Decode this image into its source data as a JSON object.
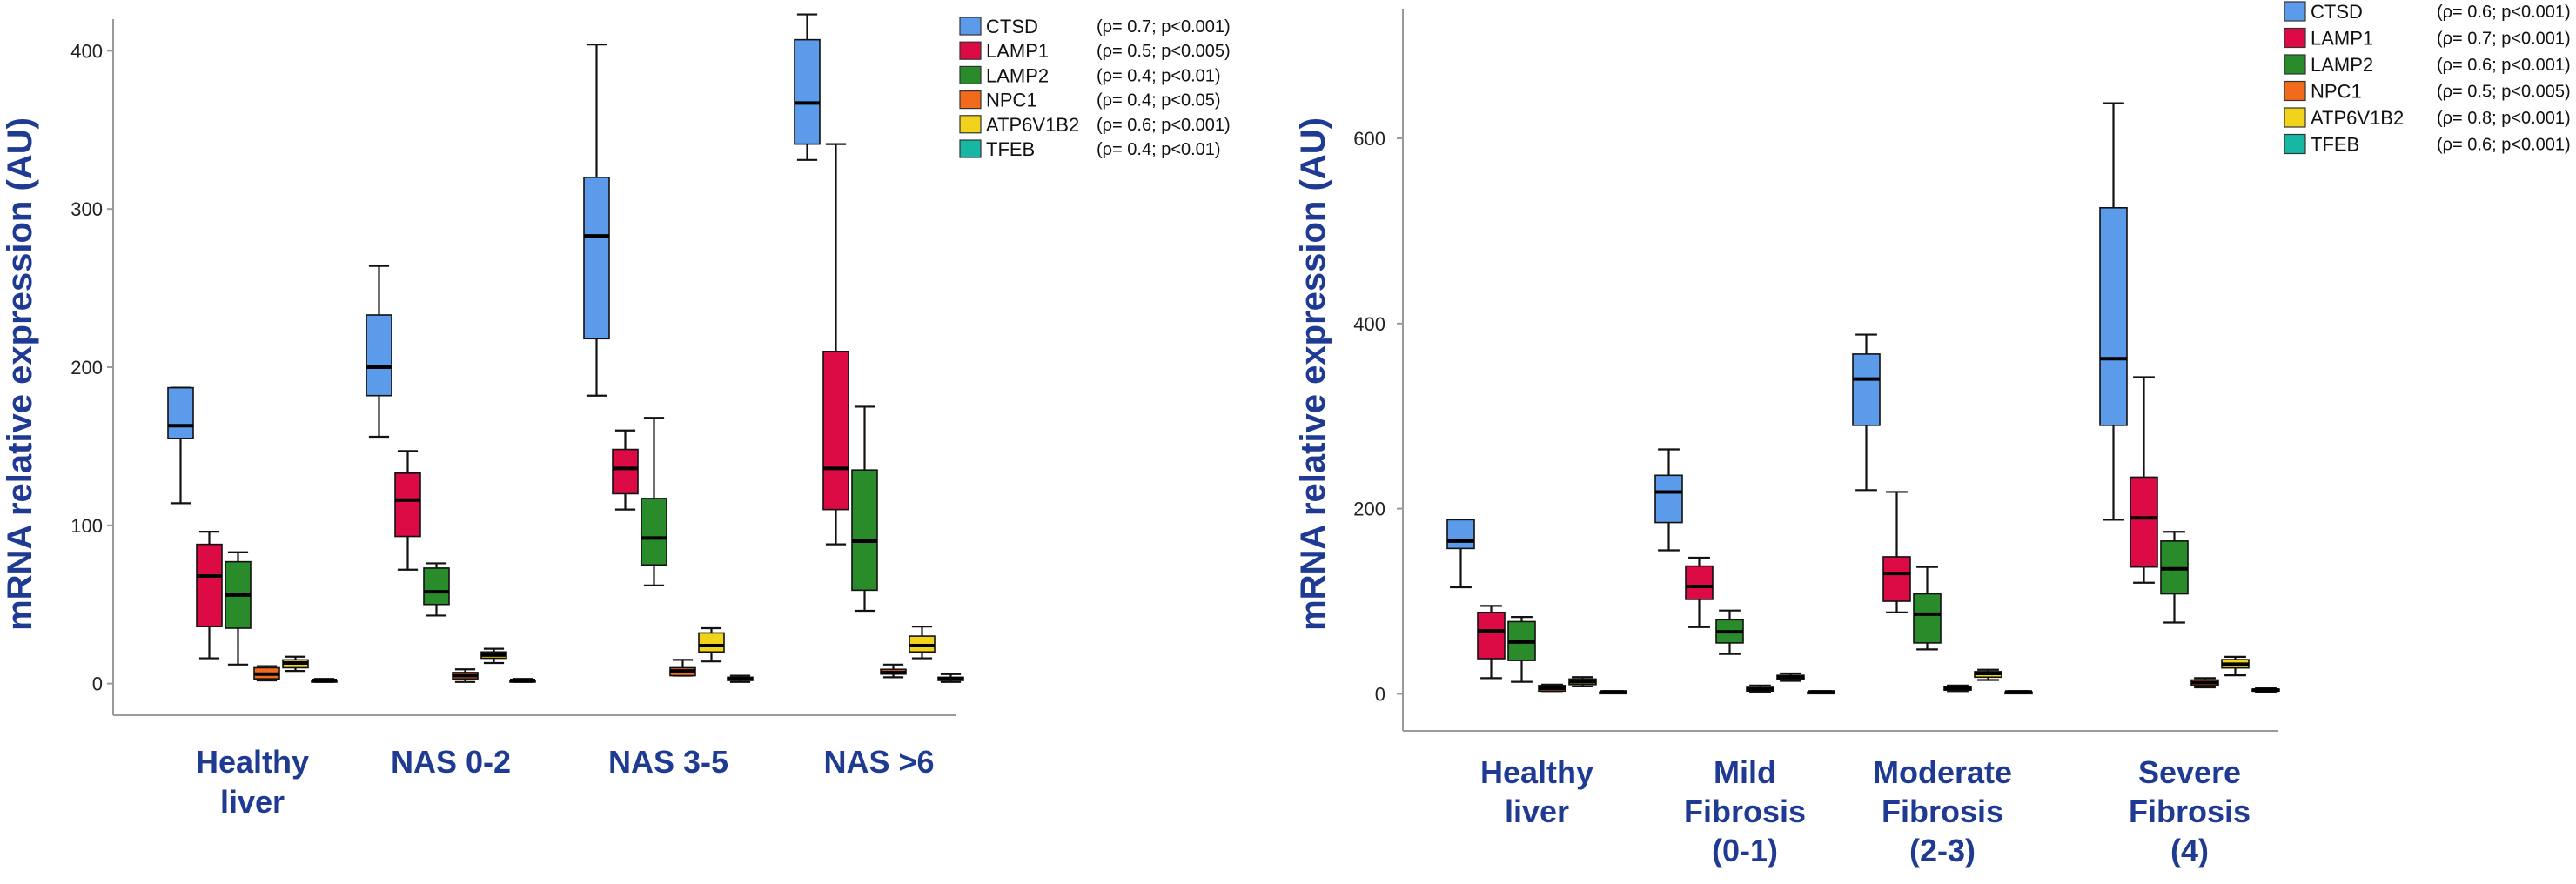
{
  "series_colors": {
    "CTSD": "#5b9bea",
    "LAMP1": "#dc0a45",
    "LAMP2": "#2a8b2a",
    "NPC1": "#f26b1d",
    "ATP6V1B2": "#f0d31a",
    "TFEB": "#17b7a6"
  },
  "chart_data": [
    {
      "type": "boxplot",
      "ylabel": "mRNA relative expression (AU)",
      "ylim": [
        -20,
        420
      ],
      "yticks": [
        0,
        100,
        200,
        300,
        400
      ],
      "categories": [
        {
          "label_lines": [
            "Healthy",
            "liver"
          ]
        },
        {
          "label_lines": [
            "NAS 0-2"
          ]
        },
        {
          "label_lines": [
            "NAS 3-5"
          ]
        },
        {
          "label_lines": [
            "NAS >6"
          ]
        }
      ],
      "legend": [
        {
          "name": "CTSD",
          "stat": "(ρ= 0.7; p<0.001)"
        },
        {
          "name": "LAMP1",
          "stat": "(ρ= 0.5; p<0.005)"
        },
        {
          "name": "LAMP2",
          "stat": "(ρ= 0.4; p<0.01)"
        },
        {
          "name": "NPC1",
          "stat": "(ρ= 0.4; p<0.05)"
        },
        {
          "name": "ATP6V1B2",
          "stat": "(ρ= 0.6; p<0.001)"
        },
        {
          "name": "TFEB",
          "stat": "(ρ= 0.4; p<0.01)"
        }
      ],
      "series": [
        {
          "name": "CTSD",
          "boxes": [
            {
              "min": 114,
              "q1": 155,
              "median": 163,
              "q3": 187,
              "max": 187
            },
            {
              "min": 156,
              "q1": 182,
              "median": 200,
              "q3": 233,
              "max": 264
            },
            {
              "min": 182,
              "q1": 218,
              "median": 283,
              "q3": 320,
              "max": 404
            },
            {
              "min": 331,
              "q1": 341,
              "median": 367,
              "q3": 407,
              "max": 423
            }
          ]
        },
        {
          "name": "LAMP1",
          "boxes": [
            {
              "min": 16,
              "q1": 36,
              "median": 68,
              "q3": 88,
              "max": 96
            },
            {
              "min": 72,
              "q1": 93,
              "median": 116,
              "q3": 133,
              "max": 147
            },
            {
              "min": 110,
              "q1": 120,
              "median": 136,
              "q3": 148,
              "max": 160
            },
            {
              "min": 88,
              "q1": 110,
              "median": 136,
              "q3": 210,
              "max": 341
            }
          ]
        },
        {
          "name": "LAMP2",
          "boxes": [
            {
              "min": 12,
              "q1": 35,
              "median": 56,
              "q3": 77,
              "max": 83
            },
            {
              "min": 43,
              "q1": 50,
              "median": 58,
              "q3": 73,
              "max": 76
            },
            {
              "min": 62,
              "q1": 75,
              "median": 92,
              "q3": 117,
              "max": 168
            },
            {
              "min": 46,
              "q1": 59,
              "median": 90,
              "q3": 135,
              "max": 175
            }
          ]
        },
        {
          "name": "NPC1",
          "boxes": [
            {
              "min": 2,
              "q1": 3,
              "median": 6,
              "q3": 10,
              "max": 11
            },
            {
              "min": 1,
              "q1": 3,
              "median": 5,
              "q3": 7,
              "max": 9
            },
            {
              "min": 5,
              "q1": 5,
              "median": 8,
              "q3": 10,
              "max": 15
            },
            {
              "min": 4,
              "q1": 6,
              "median": 7,
              "q3": 9,
              "max": 12
            }
          ]
        },
        {
          "name": "ATP6V1B2",
          "boxes": [
            {
              "min": 8,
              "q1": 10,
              "median": 13,
              "q3": 15,
              "max": 17
            },
            {
              "min": 13,
              "q1": 16,
              "median": 18,
              "q3": 20,
              "max": 22
            },
            {
              "min": 14,
              "q1": 20,
              "median": 24,
              "q3": 32,
              "max": 35
            },
            {
              "min": 16,
              "q1": 20,
              "median": 24,
              "q3": 30,
              "max": 36
            }
          ]
        },
        {
          "name": "TFEB",
          "boxes": [
            {
              "min": 1,
              "q1": 1,
              "median": 2,
              "q3": 2,
              "max": 3
            },
            {
              "min": 1,
              "q1": 1,
              "median": 2,
              "q3": 2,
              "max": 3
            },
            {
              "min": 1,
              "q1": 2,
              "median": 3,
              "q3": 4,
              "max": 5
            },
            {
              "min": 1,
              "q1": 2,
              "median": 3,
              "q3": 4,
              "max": 6
            }
          ]
        }
      ]
    },
    {
      "type": "boxplot",
      "ylabel": "mRNA relative expression (AU)",
      "ylim": [
        -40,
        740
      ],
      "yticks": [
        0,
        200,
        400,
        600
      ],
      "categories": [
        {
          "label_lines": [
            "Healthy",
            "liver"
          ]
        },
        {
          "label_lines": [
            "Mild",
            "Fibrosis",
            "(0-1)"
          ]
        },
        {
          "label_lines": [
            "Moderate",
            "Fibrosis",
            "(2-3)"
          ]
        },
        {
          "label_lines": [
            "Severe",
            "Fibrosis",
            "(4)"
          ]
        }
      ],
      "legend": [
        {
          "name": "CTSD",
          "stat": "(ρ= 0.6; p<0.001)"
        },
        {
          "name": "LAMP1",
          "stat": "(ρ= 0.7; p<0.001)"
        },
        {
          "name": "LAMP2",
          "stat": "(ρ= 0.6; p<0.001)"
        },
        {
          "name": "NPC1",
          "stat": "(ρ= 0.5; p<0.005)"
        },
        {
          "name": "ATP6V1B2",
          "stat": "(ρ= 0.8; p<0.001)"
        },
        {
          "name": "TFEB",
          "stat": "(ρ= 0.6; p<0.001)"
        }
      ],
      "series": [
        {
          "name": "CTSD",
          "boxes": [
            {
              "min": 115,
              "q1": 157,
              "median": 165,
              "q3": 188,
              "max": 188
            },
            {
              "min": 155,
              "q1": 185,
              "median": 218,
              "q3": 236,
              "max": 264
            },
            {
              "min": 220,
              "q1": 290,
              "median": 340,
              "q3": 367,
              "max": 388
            },
            {
              "min": 188,
              "q1": 290,
              "median": 362,
              "q3": 525,
              "max": 638
            }
          ]
        },
        {
          "name": "LAMP1",
          "boxes": [
            {
              "min": 17,
              "q1": 38,
              "median": 68,
              "q3": 88,
              "max": 95
            },
            {
              "min": 72,
              "q1": 102,
              "median": 116,
              "q3": 138,
              "max": 147
            },
            {
              "min": 88,
              "q1": 100,
              "median": 130,
              "q3": 148,
              "max": 218
            },
            {
              "min": 120,
              "q1": 137,
              "median": 190,
              "q3": 234,
              "max": 342
            }
          ]
        },
        {
          "name": "LAMP2",
          "boxes": [
            {
              "min": 13,
              "q1": 36,
              "median": 56,
              "q3": 78,
              "max": 83
            },
            {
              "min": 43,
              "q1": 55,
              "median": 67,
              "q3": 80,
              "max": 90
            },
            {
              "min": 48,
              "q1": 55,
              "median": 86,
              "q3": 108,
              "max": 137
            },
            {
              "min": 77,
              "q1": 108,
              "median": 135,
              "q3": 165,
              "max": 175
            }
          ]
        },
        {
          "name": "NPC1",
          "boxes": [
            {
              "min": 3,
              "q1": 3,
              "median": 6,
              "q3": 9,
              "max": 10
            },
            {
              "min": 2,
              "q1": 3,
              "median": 5,
              "q3": 7,
              "max": 9
            },
            {
              "min": 3,
              "q1": 4,
              "median": 6,
              "q3": 8,
              "max": 9
            },
            {
              "min": 7,
              "q1": 9,
              "median": 12,
              "q3": 15,
              "max": 17
            }
          ]
        },
        {
          "name": "ATP6V1B2",
          "boxes": [
            {
              "min": 8,
              "q1": 10,
              "median": 13,
              "q3": 16,
              "max": 18
            },
            {
              "min": 14,
              "q1": 16,
              "median": 18,
              "q3": 20,
              "max": 22
            },
            {
              "min": 15,
              "q1": 18,
              "median": 22,
              "q3": 24,
              "max": 26
            },
            {
              "min": 20,
              "q1": 28,
              "median": 32,
              "q3": 37,
              "max": 40
            }
          ]
        },
        {
          "name": "TFEB",
          "boxes": [
            {
              "min": 1,
              "q1": 1,
              "median": 2,
              "q3": 2,
              "max": 3
            },
            {
              "min": 1,
              "q1": 1,
              "median": 2,
              "q3": 2,
              "max": 3
            },
            {
              "min": 1,
              "q1": 1,
              "median": 2,
              "q3": 2,
              "max": 3
            },
            {
              "min": 2,
              "q1": 3,
              "median": 4,
              "q3": 5,
              "max": 6
            }
          ]
        }
      ]
    }
  ]
}
